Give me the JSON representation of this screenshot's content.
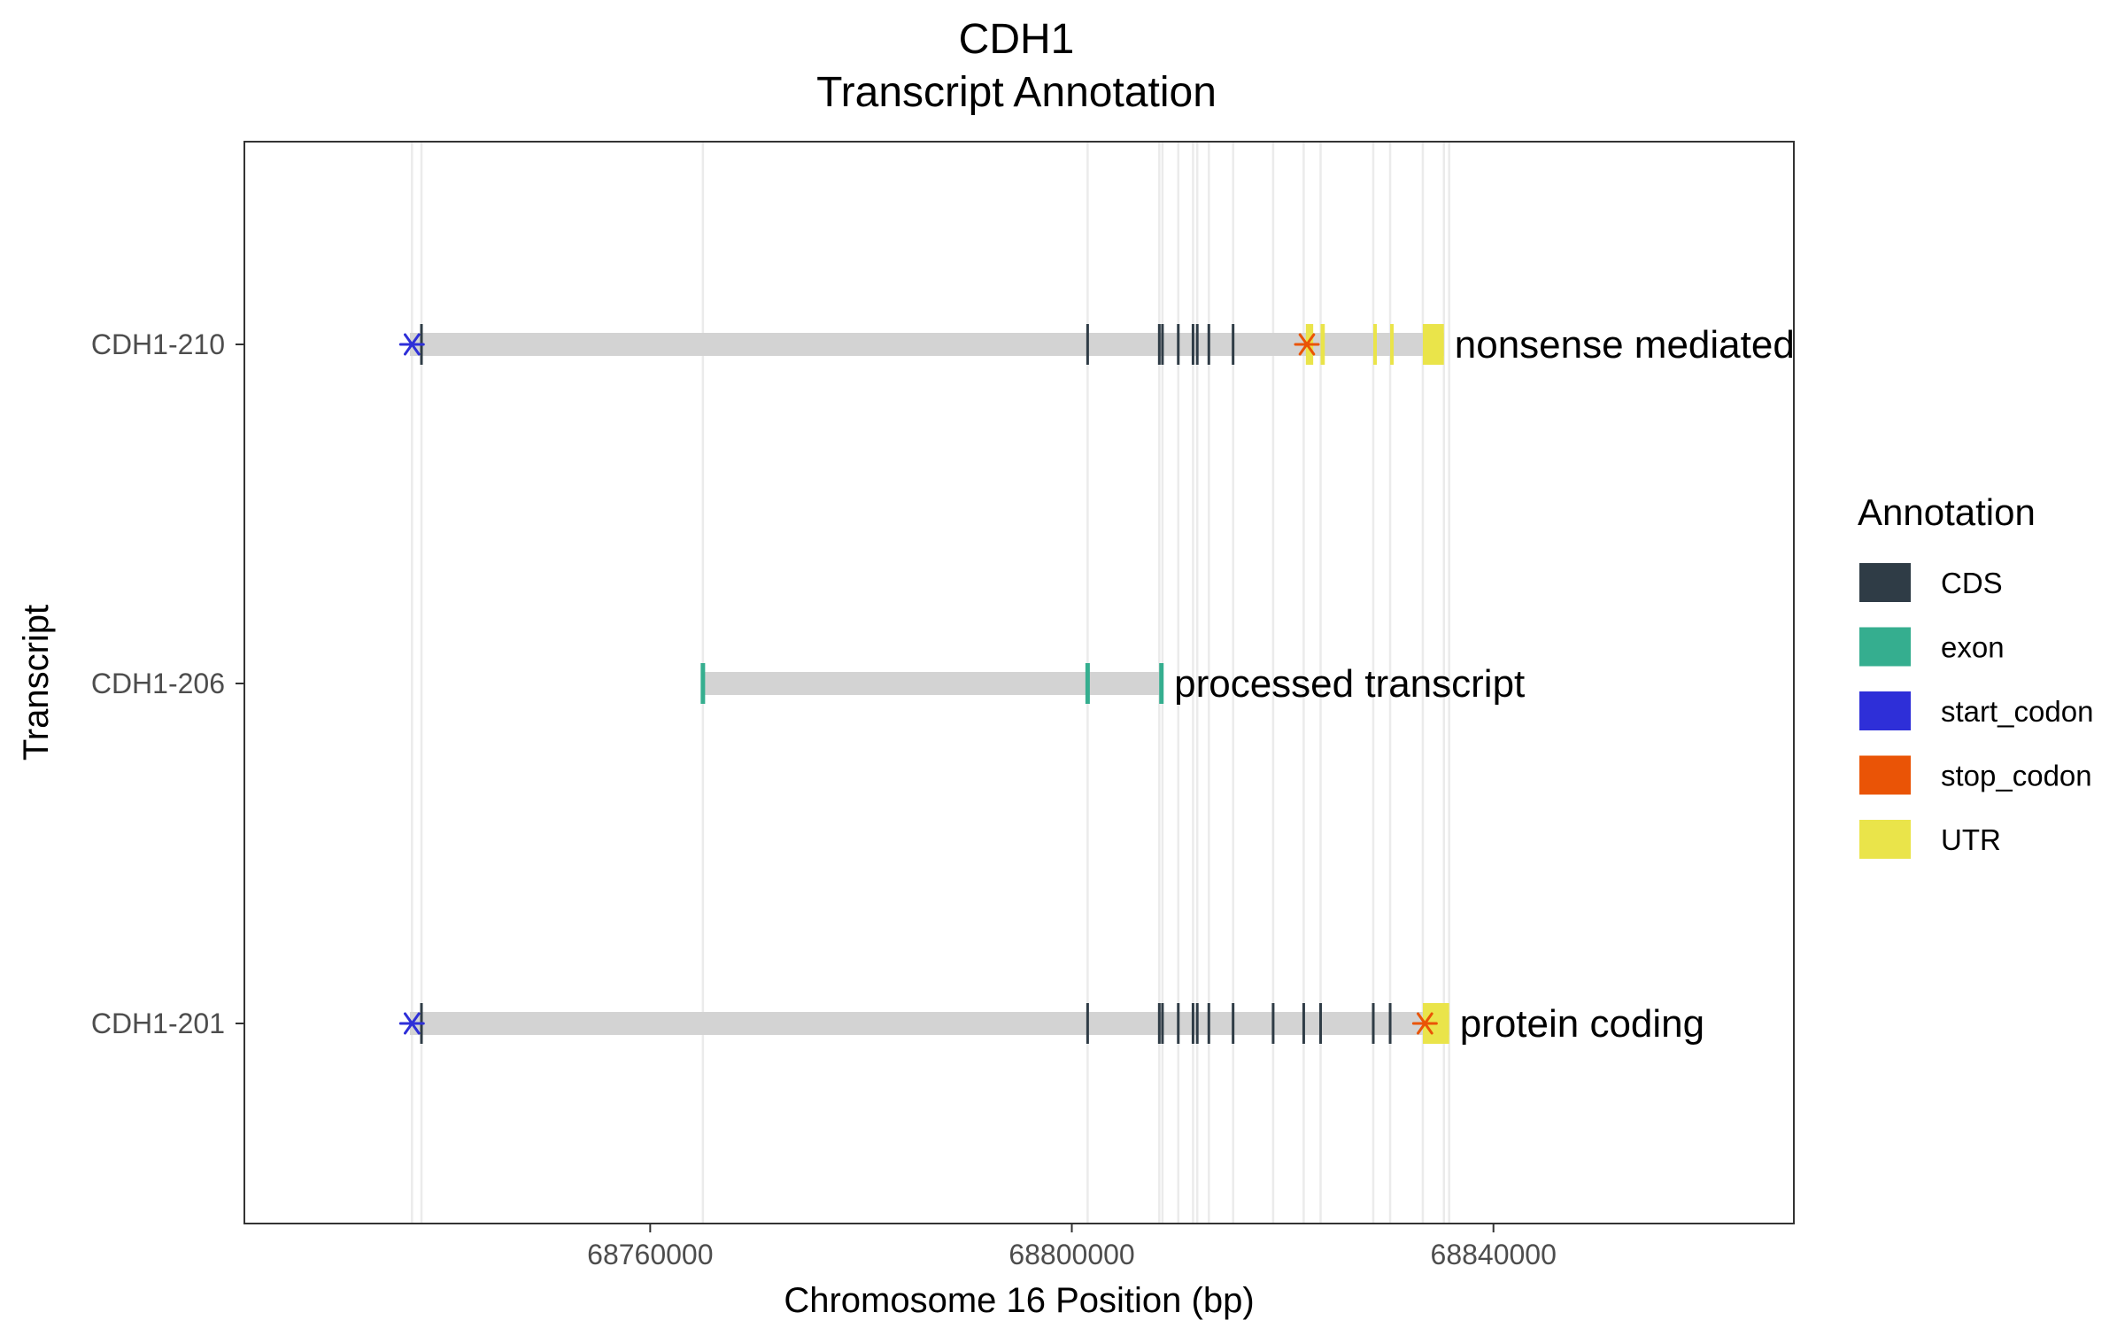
{
  "chart_data": {
    "type": "gene-structure",
    "title_line1": "CDH1",
    "title_line2": "Transcript Annotation",
    "xlabel": "Chromosome 16 Position (bp)",
    "ylabel": "Transcript",
    "xlim": [
      68721500,
      68868500
    ],
    "x_ticks": [
      68760000,
      68800000,
      68840000
    ],
    "x_tick_labels": [
      "68760000",
      "68800000",
      "68840000"
    ],
    "grid": true,
    "legend_position": "right",
    "legend_title": "Annotation",
    "legend": [
      {
        "key": "CDS",
        "label": "CDS",
        "color": "#2f3c46"
      },
      {
        "key": "exon",
        "label": "exon",
        "color": "#35ae8f"
      },
      {
        "key": "start_codon",
        "label": "start_codon",
        "color": "#2e2fd8"
      },
      {
        "key": "stop_codon",
        "label": "stop_codon",
        "color": "#ea5406"
      },
      {
        "key": "UTR",
        "label": "UTR",
        "color": "#eae44a"
      }
    ],
    "intron_color": "#d3d3d3",
    "transcripts": [
      {
        "name": "CDH1-210",
        "biotype": "nonsense mediated",
        "start": 68737200,
        "end": 68835300,
        "cds": [
          68738300,
          68801500,
          68808300,
          68808600,
          68810100,
          68811500,
          68811900,
          68813000,
          68815300
        ],
        "utr": [
          [
            68822200,
            68822900
          ],
          [
            68823600,
            68824000
          ],
          [
            68828600,
            68828900
          ],
          [
            68830200,
            68830500
          ],
          [
            68833300,
            68835300
          ]
        ],
        "exon": [],
        "start_codon": [
          68737400
        ],
        "stop_codon": [
          68822300
        ]
      },
      {
        "name": "CDH1-206",
        "biotype": "processed transcript",
        "start": 68765000,
        "end": 68808700,
        "cds": [],
        "utr": [],
        "exon": [
          68765000,
          68801500,
          68808500
        ],
        "start_codon": [],
        "stop_codon": []
      },
      {
        "name": "CDH1-201",
        "biotype": "protein coding",
        "start": 68737200,
        "end": 68835800,
        "cds": [
          68738300,
          68801500,
          68808300,
          68808600,
          68810100,
          68811500,
          68811900,
          68813000,
          68815300,
          68819100,
          68822000,
          68823600,
          68828600,
          68830200
        ],
        "utr": [
          [
            68833300,
            68835800
          ]
        ],
        "exon": [],
        "start_codon": [
          68737400
        ],
        "stop_codon": [
          68833500
        ]
      }
    ],
    "vgrid_positions": [
      68737400,
      68738300,
      68765000,
      68801500,
      68808300,
      68808600,
      68810100,
      68811500,
      68811900,
      68813000,
      68815300,
      68819100,
      68822000,
      68823600,
      68828600,
      68830200,
      68833300,
      68835300,
      68835800
    ]
  }
}
